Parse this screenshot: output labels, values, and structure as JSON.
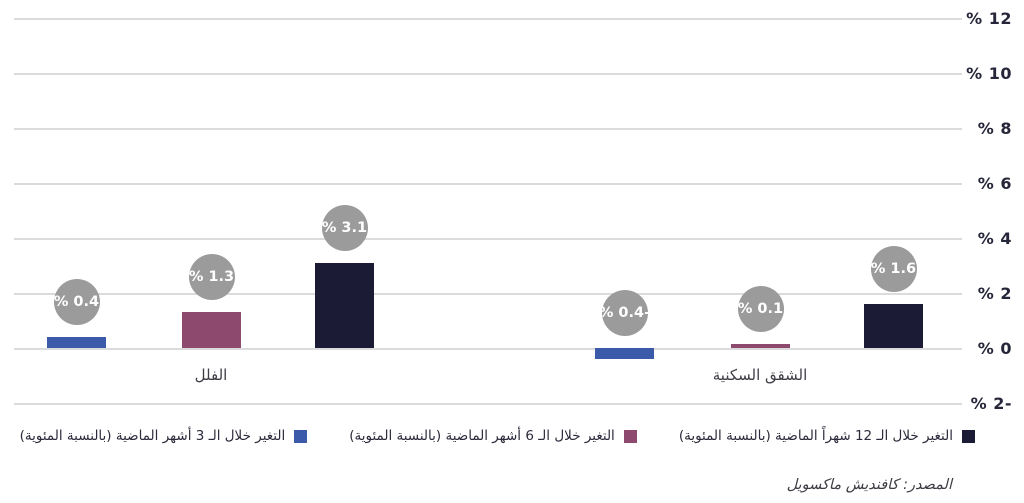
{
  "chart_data": {
    "type": "bar",
    "title": "",
    "categories": [
      "الفلل",
      "الشقق السكنية"
    ],
    "series": [
      {
        "name": "التغير خلال الـ 12 شهراً الماضية (بالنسبة المئوية)",
        "color": "#1b1b36",
        "values": [
          3.1,
          1.6
        ],
        "data_labels": [
          "% 3.1",
          "% 1.6"
        ]
      },
      {
        "name": "التغير خلال الـ 6 أشهر الماضية (بالنسبة المئوية)",
        "color": "#8e4a6e",
        "values": [
          1.3,
          0.1
        ],
        "data_labels": [
          "% 1.3",
          "% 0.1"
        ]
      },
      {
        "name": "التغير خلال الـ 3 أشهر الماضية (بالنسبة المئوية)",
        "color": "#3b5aa9",
        "values": [
          0.4,
          -0.4
        ],
        "data_labels": [
          "% 0.4",
          "% 0.4-"
        ]
      }
    ],
    "y_tick_labels": [
      "% 12",
      "% 10",
      "% 8",
      "% 6",
      "% 4",
      "% 2",
      "% 0",
      "% 2-"
    ],
    "y_tick_values": [
      12,
      10,
      8,
      6,
      4,
      2,
      0,
      -2
    ],
    "ylim": [
      -2,
      12
    ],
    "grid": true,
    "legend_position": "bottom",
    "data_label_style": "gray-circle",
    "colors": {
      "gridline": "#dbdbdd",
      "bubble_bg": "#9b9b9b",
      "bubble_text": "#ffffff",
      "axis_text": "#26263a"
    }
  },
  "source_note": "المصدر: كافنديش ماكسويل"
}
